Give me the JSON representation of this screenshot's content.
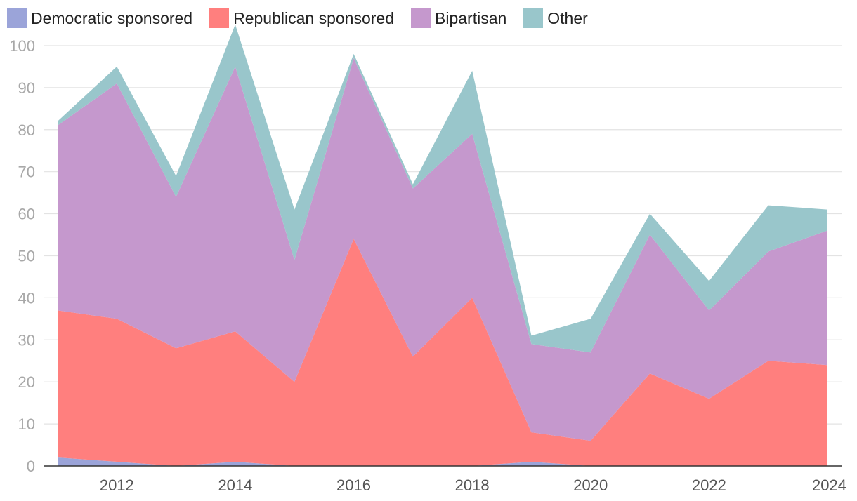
{
  "chart_data": {
    "type": "area",
    "stacked": true,
    "title": "",
    "xlabel": "",
    "ylabel": "",
    "x": [
      2011,
      2012,
      2013,
      2014,
      2015,
      2016,
      2017,
      2018,
      2019,
      2020,
      2021,
      2022,
      2023,
      2024
    ],
    "x_ticks": [
      "2012",
      "2014",
      "2016",
      "2018",
      "2020",
      "2022",
      "2024"
    ],
    "y_ticks": [
      "0",
      "10",
      "20",
      "30",
      "40",
      "50",
      "60",
      "70",
      "80",
      "90",
      "100"
    ],
    "ylim": [
      0,
      105
    ],
    "xlim": [
      2011,
      2024
    ],
    "grid": true,
    "legend_position": "top-left",
    "series": [
      {
        "name": "Democratic sponsored",
        "color": "#9ba4d9",
        "values": [
          2,
          1,
          0,
          1,
          0,
          0,
          0,
          0,
          1,
          0,
          0,
          0,
          0,
          0
        ]
      },
      {
        "name": "Republican sponsored",
        "color": "#ff7f7e",
        "values": [
          35,
          34,
          28,
          31,
          20,
          54,
          26,
          40,
          7,
          6,
          22,
          16,
          25,
          24
        ]
      },
      {
        "name": "Bipartisan",
        "color": "#c598cd",
        "values": [
          44,
          56,
          36,
          63,
          29,
          43,
          40,
          39,
          21,
          21,
          33,
          21,
          26,
          32
        ]
      },
      {
        "name": "Other",
        "color": "#99c6cb",
        "values": [
          1,
          4,
          5,
          10,
          12,
          1,
          1,
          15,
          2,
          8,
          5,
          7,
          11,
          5
        ]
      }
    ]
  }
}
